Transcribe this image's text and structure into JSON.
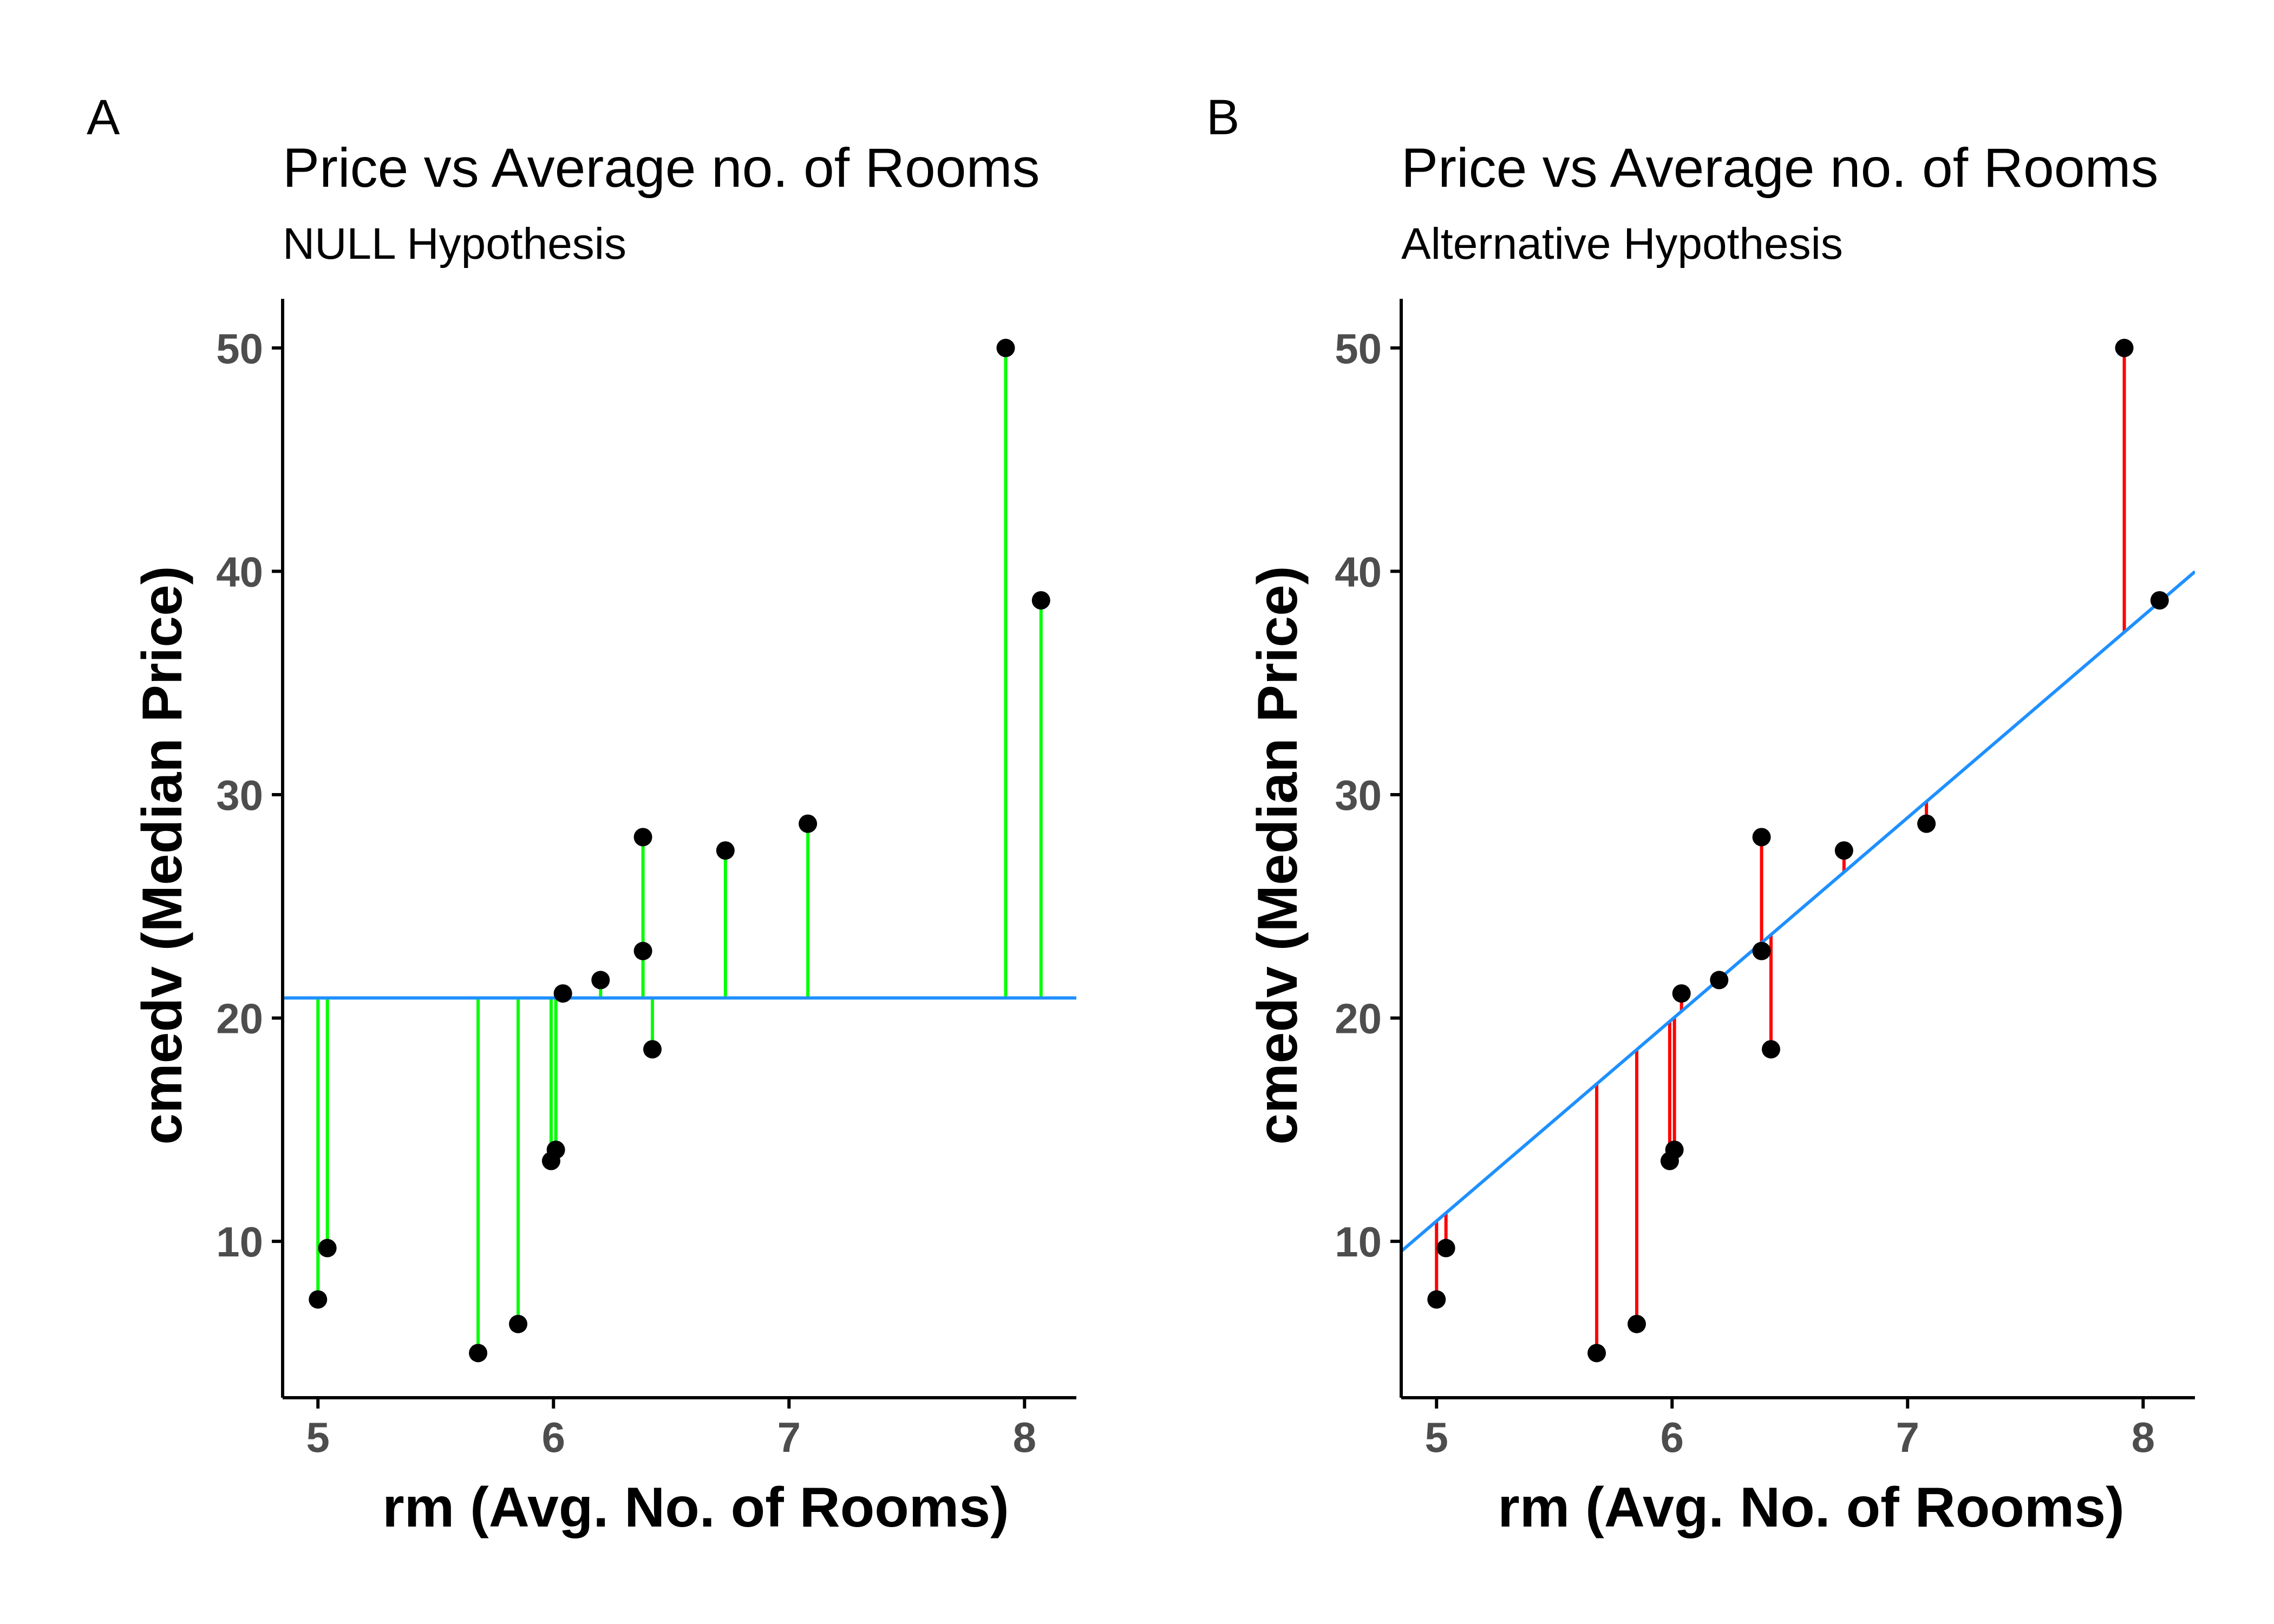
{
  "colors": {
    "point": "#000000",
    "line": "#1e90ff",
    "residual_null": "#00ff00",
    "residual_alt": "#ff0000",
    "axis": "#000000"
  },
  "chart_data": [
    {
      "type": "scatter",
      "tag": "A",
      "title": "Price vs Average no. of Rooms",
      "subtitle": "NULL Hypothesis",
      "xlabel": "rm (Avg. No. of Rooms)",
      "ylabel": "cmedv (Median Price)",
      "xlim": [
        4.85,
        8.22
      ],
      "ylim": [
        3.0,
        52.2
      ],
      "xticks": [
        5,
        6,
        7,
        8
      ],
      "yticks": [
        10,
        20,
        30,
        40,
        50
      ],
      "grid": false,
      "fit_line": {
        "kind": "mean",
        "y": 20.9
      },
      "residual_color_key": "residual_null",
      "points": [
        {
          "x": 5.0,
          "y": 7.4
        },
        {
          "x": 5.04,
          "y": 9.7
        },
        {
          "x": 5.68,
          "y": 5.0
        },
        {
          "x": 5.85,
          "y": 6.3
        },
        {
          "x": 5.99,
          "y": 13.6
        },
        {
          "x": 6.01,
          "y": 14.1
        },
        {
          "x": 6.04,
          "y": 21.1
        },
        {
          "x": 6.2,
          "y": 21.7
        },
        {
          "x": 6.38,
          "y": 28.1
        },
        {
          "x": 6.38,
          "y": 23.0
        },
        {
          "x": 6.42,
          "y": 18.6
        },
        {
          "x": 6.73,
          "y": 27.5
        },
        {
          "x": 7.08,
          "y": 28.7
        },
        {
          "x": 7.92,
          "y": 50.0
        },
        {
          "x": 8.07,
          "y": 38.7
        }
      ]
    },
    {
      "type": "scatter",
      "tag": "B",
      "title": "Price vs Average no. of Rooms",
      "subtitle": "Alternative Hypothesis",
      "xlabel": "rm (Avg. No. of Rooms)",
      "ylabel": "cmedv (Median Price)",
      "xlim": [
        4.85,
        8.22
      ],
      "ylim": [
        3.0,
        52.2
      ],
      "xticks": [
        5,
        6,
        7,
        8
      ],
      "yticks": [
        10,
        20,
        30,
        40,
        50
      ],
      "grid": false,
      "fit_line": {
        "kind": "linear",
        "slope": 9.03,
        "intercept": -34.24
      },
      "residual_color_key": "residual_alt",
      "points": [
        {
          "x": 5.0,
          "y": 7.4
        },
        {
          "x": 5.04,
          "y": 9.7
        },
        {
          "x": 5.68,
          "y": 5.0
        },
        {
          "x": 5.85,
          "y": 6.3
        },
        {
          "x": 5.99,
          "y": 13.6
        },
        {
          "x": 6.01,
          "y": 14.1
        },
        {
          "x": 6.04,
          "y": 21.1
        },
        {
          "x": 6.2,
          "y": 21.7
        },
        {
          "x": 6.38,
          "y": 28.1
        },
        {
          "x": 6.38,
          "y": 23.0
        },
        {
          "x": 6.42,
          "y": 18.6
        },
        {
          "x": 6.73,
          "y": 27.5
        },
        {
          "x": 7.08,
          "y": 28.7
        },
        {
          "x": 7.92,
          "y": 50.0
        },
        {
          "x": 8.07,
          "y": 38.7
        }
      ]
    }
  ]
}
